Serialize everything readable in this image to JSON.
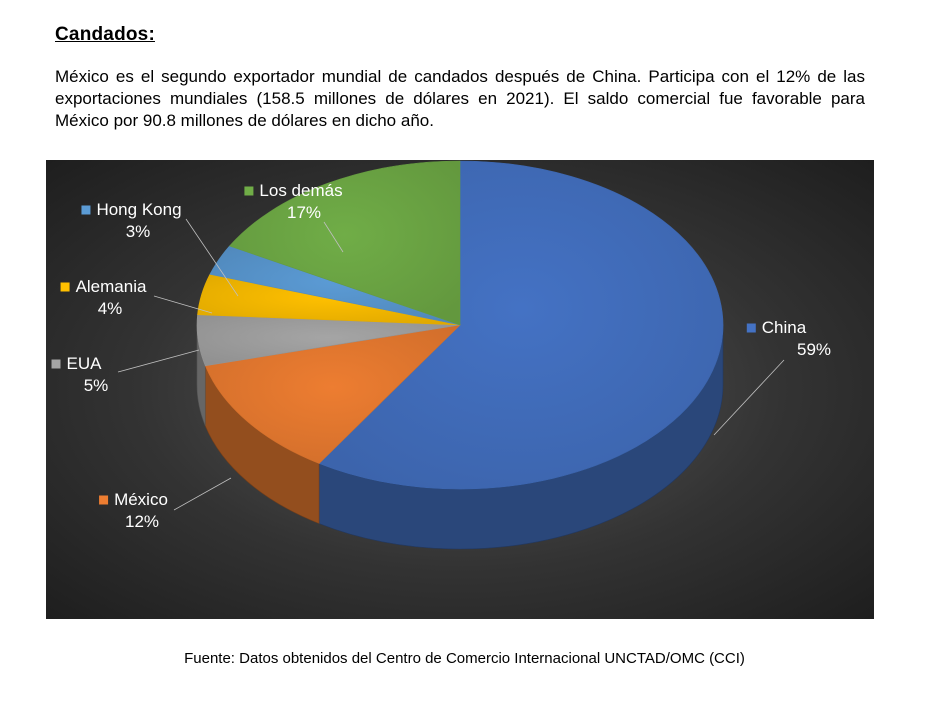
{
  "document": {
    "heading": "Candados:",
    "paragraph": "México es el segundo exportador mundial de candados después de China. Participa con el 12% de las exportaciones mundiales (158.5 millones de dólares en 2021). El saldo comercial fue favorable para México por 90.8 millones de dólares en dicho año.",
    "source": "Fuente: Datos obtenidos del Centro de Comercio Internacional UNCTAD/OMC (CCI)"
  },
  "chart_data": {
    "type": "pie",
    "title": "",
    "slices": [
      {
        "name": "China",
        "value": 59,
        "label": "59%",
        "color": "#4472C4"
      },
      {
        "name": "México",
        "value": 12,
        "label": "12%",
        "color": "#ED7D31"
      },
      {
        "name": "EUA",
        "value": 5,
        "label": "5%",
        "color": "#A5A5A5"
      },
      {
        "name": "Alemania",
        "value": 4,
        "label": "4%",
        "color": "#FFC000"
      },
      {
        "name": "Hong Kong",
        "value": 3,
        "label": "3%",
        "color": "#5B9BD5"
      },
      {
        "name": "Los demás",
        "value": 17,
        "label": "17%",
        "color": "#70AD47"
      }
    ],
    "style": "3d",
    "background": "#2b2b2b"
  }
}
